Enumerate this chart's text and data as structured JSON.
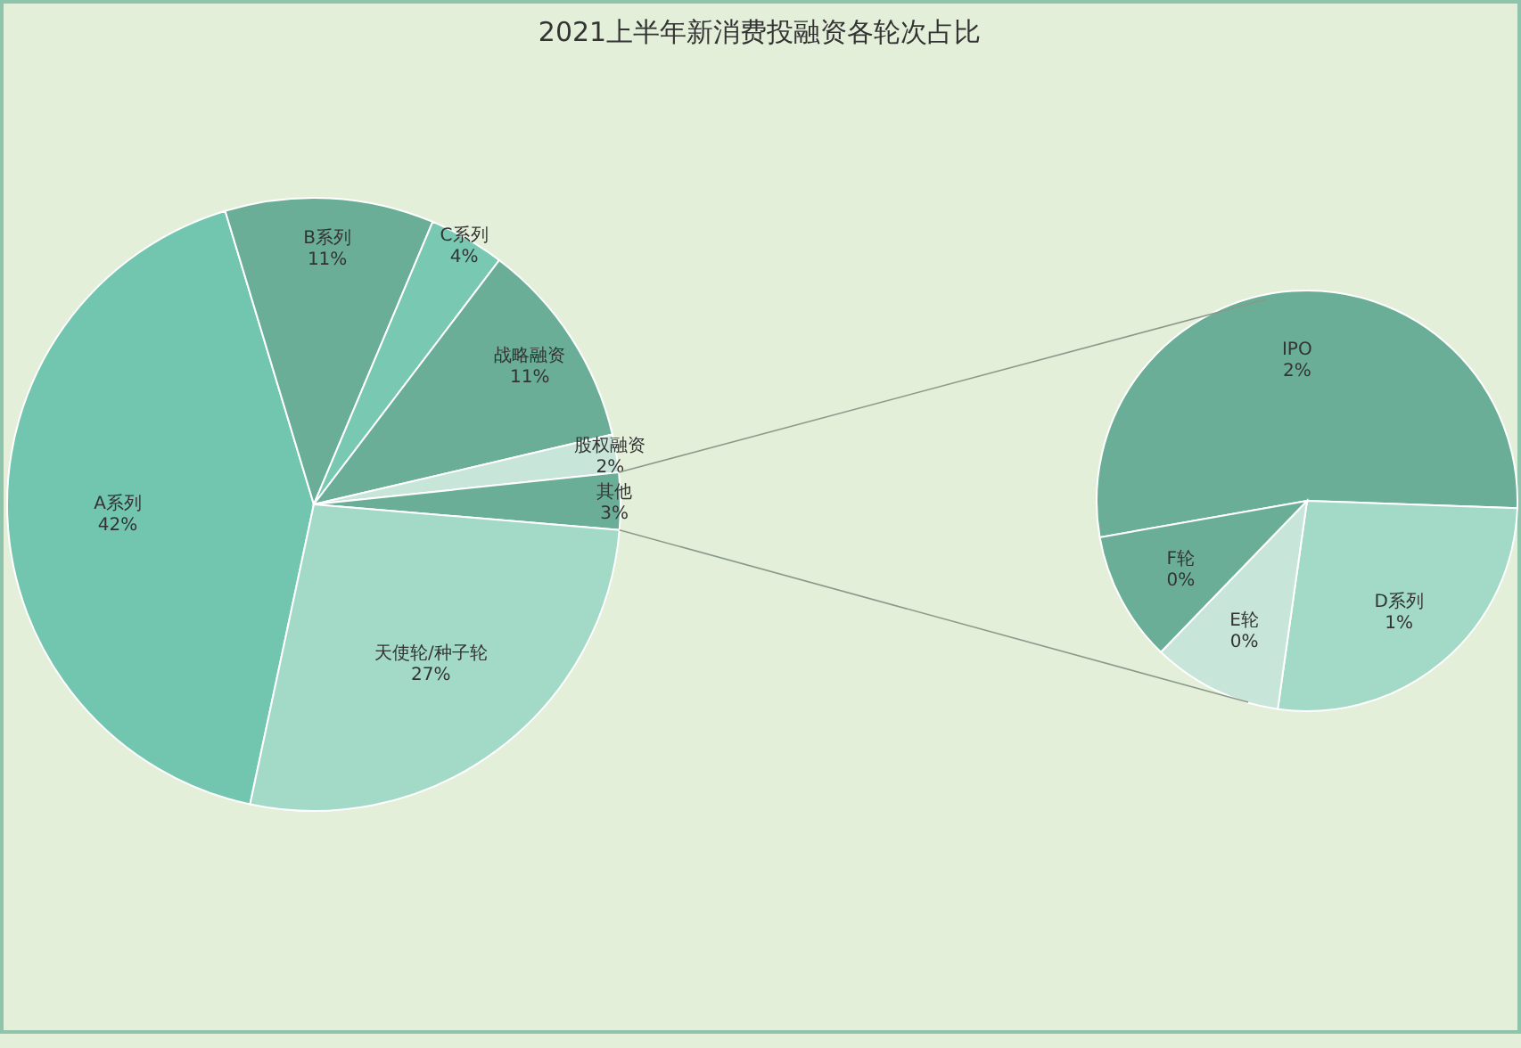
{
  "chart_data": [
    {
      "type": "pie",
      "title": "2021上半年新消费投融资各轮次占比",
      "categories": [
        "A系列",
        "B系列",
        "C系列",
        "战略融资",
        "股权融资",
        "其他",
        "天使轮/种子轮"
      ],
      "values": [
        42,
        11,
        4,
        11,
        2,
        3,
        27
      ],
      "value_labels": [
        "42%",
        "11%",
        "4%",
        "11%",
        "2%",
        "3%",
        "27%"
      ],
      "colors": [
        "#72c6b0",
        "#6aae98",
        "#78c8b2",
        "#6aae98",
        "#c8e5da",
        "#6aae98",
        "#a3d9c7"
      ]
    },
    {
      "type": "pie",
      "categories": [
        "IPO",
        "D系列",
        "E轮",
        "F轮"
      ],
      "values": [
        1.6,
        0.8,
        0.3,
        0.3
      ],
      "value_labels": [
        "2%",
        "1%",
        "0%",
        "0%"
      ],
      "colors": [
        "#6aae98",
        "#a3d9c7",
        "#c8e5da",
        "#6aae98"
      ]
    }
  ]
}
